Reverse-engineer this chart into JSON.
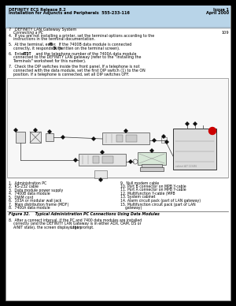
{
  "page_bg": "#000000",
  "content_bg": "#ffffff",
  "header_bg": "#b8d4e8",
  "header_line1_left": "DEFINITY ECS Release 8.2",
  "header_line1_right": "Issue 1",
  "header_line2_left": "Installation for Adjuncts and Peripherals  555-233-116",
  "header_line2_right": "April 2000",
  "header_line3_left": "7   DEFINITY LAN Gateway System",
  "header_line3_sub": "    Connecting a PC",
  "header_line3_right": "109",
  "legend_left": [
    "1.  Administration PC",
    "2.  RS-232 cable",
    "3.  Data module power supply",
    "4.  7400B data module",
    "5.  DWM cord",
    "6.  103A or modular wall jack",
    "7.  Main distribution frame (MDF)",
    "8.  7400A data module"
  ],
  "legend_right": [
    "9.  Null modem cable",
    "10. Port B connector on MPB Y-cable",
    "11. Port A connector on MPB Y-cable",
    "12. Multifunction Y-cable (MPB",
    "13. System cabinet",
    "14. Alarm circuit pack (part of LAN gateway)",
    "15. Multifunction circuit pack (part of LAN",
    "    gateway)"
  ],
  "figure_caption": "Figure 32.    Typical Administration PC Connections Using Data Modules",
  "header_bg_color": "#c8dff0",
  "content_border": "#999999"
}
